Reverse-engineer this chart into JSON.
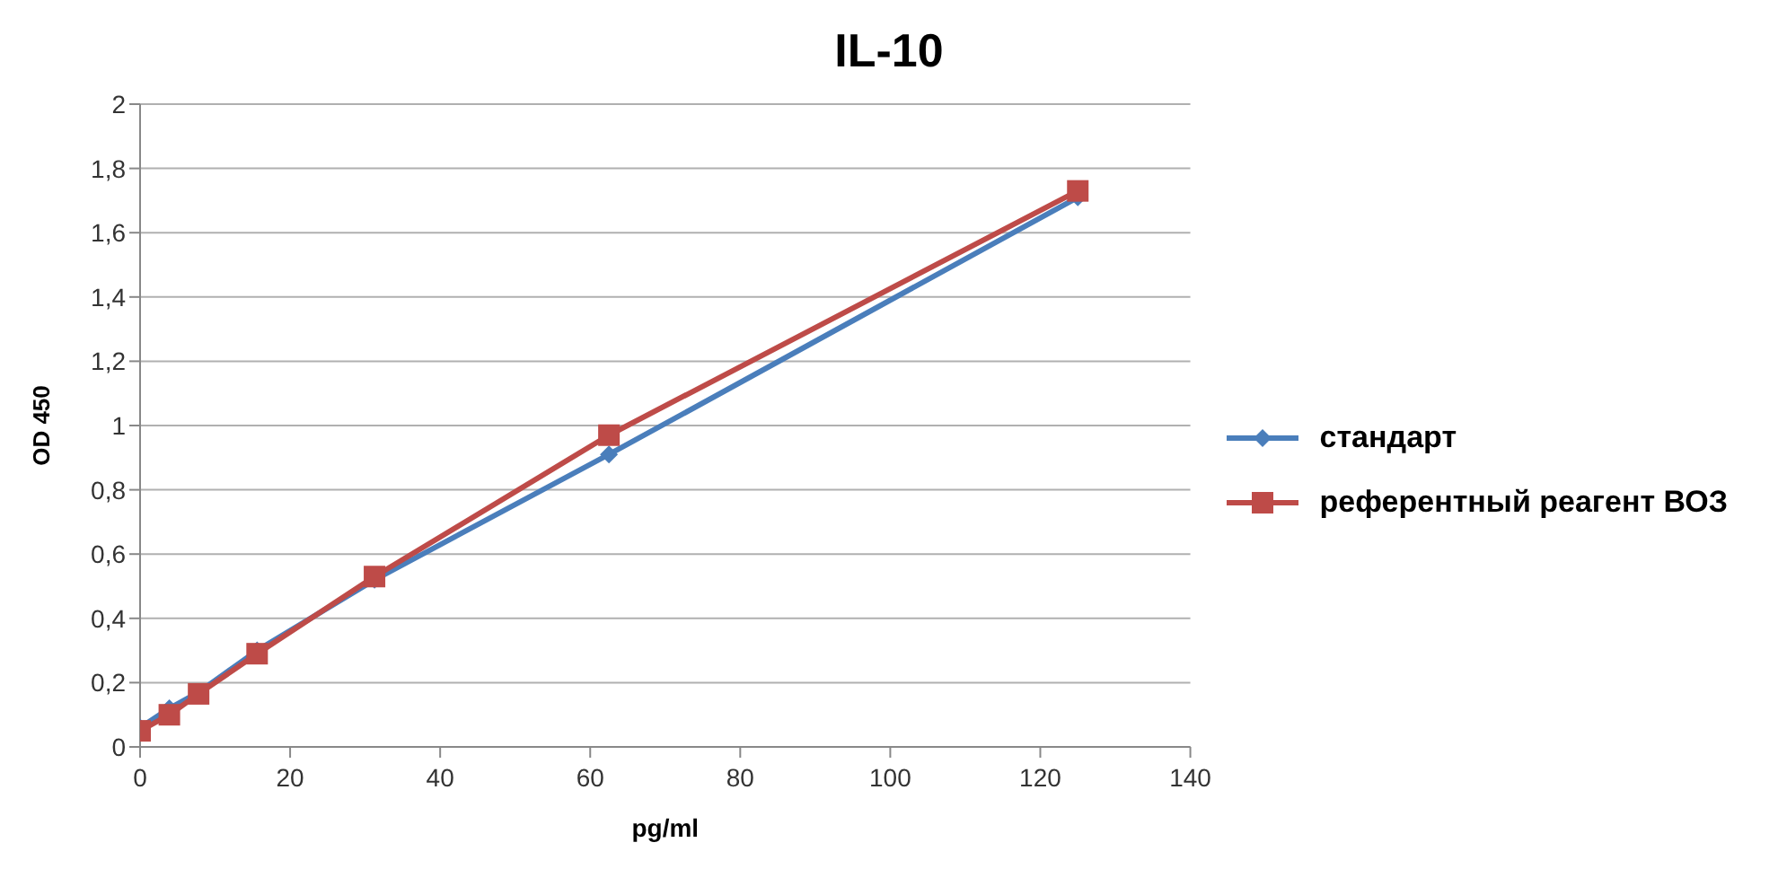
{
  "chart_data": {
    "type": "line",
    "title": "IL-10",
    "xlabel": "pg/ml",
    "ylabel": "OD 450",
    "x": [
      0,
      3.9,
      7.8,
      15.6,
      31.25,
      62.5,
      125
    ],
    "series": [
      {
        "name": "стандарт",
        "color": "#4a7ebb",
        "marker": "diamond",
        "values": [
          0.06,
          0.12,
          0.17,
          0.3,
          0.52,
          0.91,
          1.71
        ]
      },
      {
        "name": "референтный реагент ВОЗ",
        "color": "#be4b48",
        "marker": "square",
        "values": [
          0.05,
          0.1,
          0.165,
          0.29,
          0.53,
          0.97,
          1.73
        ]
      }
    ],
    "xlim": [
      0,
      140
    ],
    "xticks": [
      0,
      20,
      40,
      60,
      80,
      100,
      120,
      140
    ],
    "ylim": [
      0,
      2
    ],
    "yticks": [
      {
        "value": 0,
        "label": "0"
      },
      {
        "value": 0.2,
        "label": "0,2"
      },
      {
        "value": 0.4,
        "label": "0,4"
      },
      {
        "value": 0.6,
        "label": "0,6"
      },
      {
        "value": 0.8,
        "label": "0,8"
      },
      {
        "value": 1,
        "label": "1"
      },
      {
        "value": 1.2,
        "label": "1,2"
      },
      {
        "value": 1.4,
        "label": "1,4"
      },
      {
        "value": 1.6,
        "label": "1,6"
      },
      {
        "value": 1.8,
        "label": "1,8"
      },
      {
        "value": 2,
        "label": "2"
      }
    ],
    "grid": "y",
    "legend": "right",
    "line_style": "solid"
  }
}
